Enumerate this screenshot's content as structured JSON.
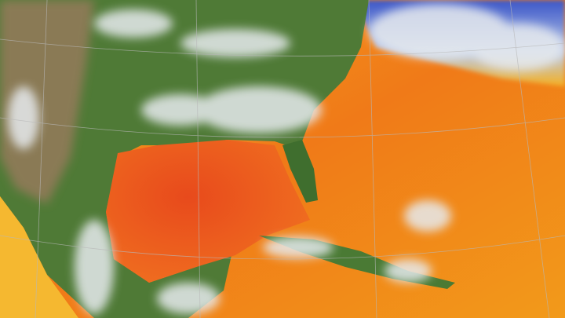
{
  "map": {
    "colors": {
      "land": "#4f7a36",
      "land_dry": "#8a7a55",
      "ocean_warm": "#f0701a",
      "ocean_hot": "#e8441c",
      "ocean_mild": "#f5a623",
      "ocean_cool": "#3a5fd0",
      "cloud": "#e6eaee",
      "grid": "#b8b8b8"
    }
  }
}
